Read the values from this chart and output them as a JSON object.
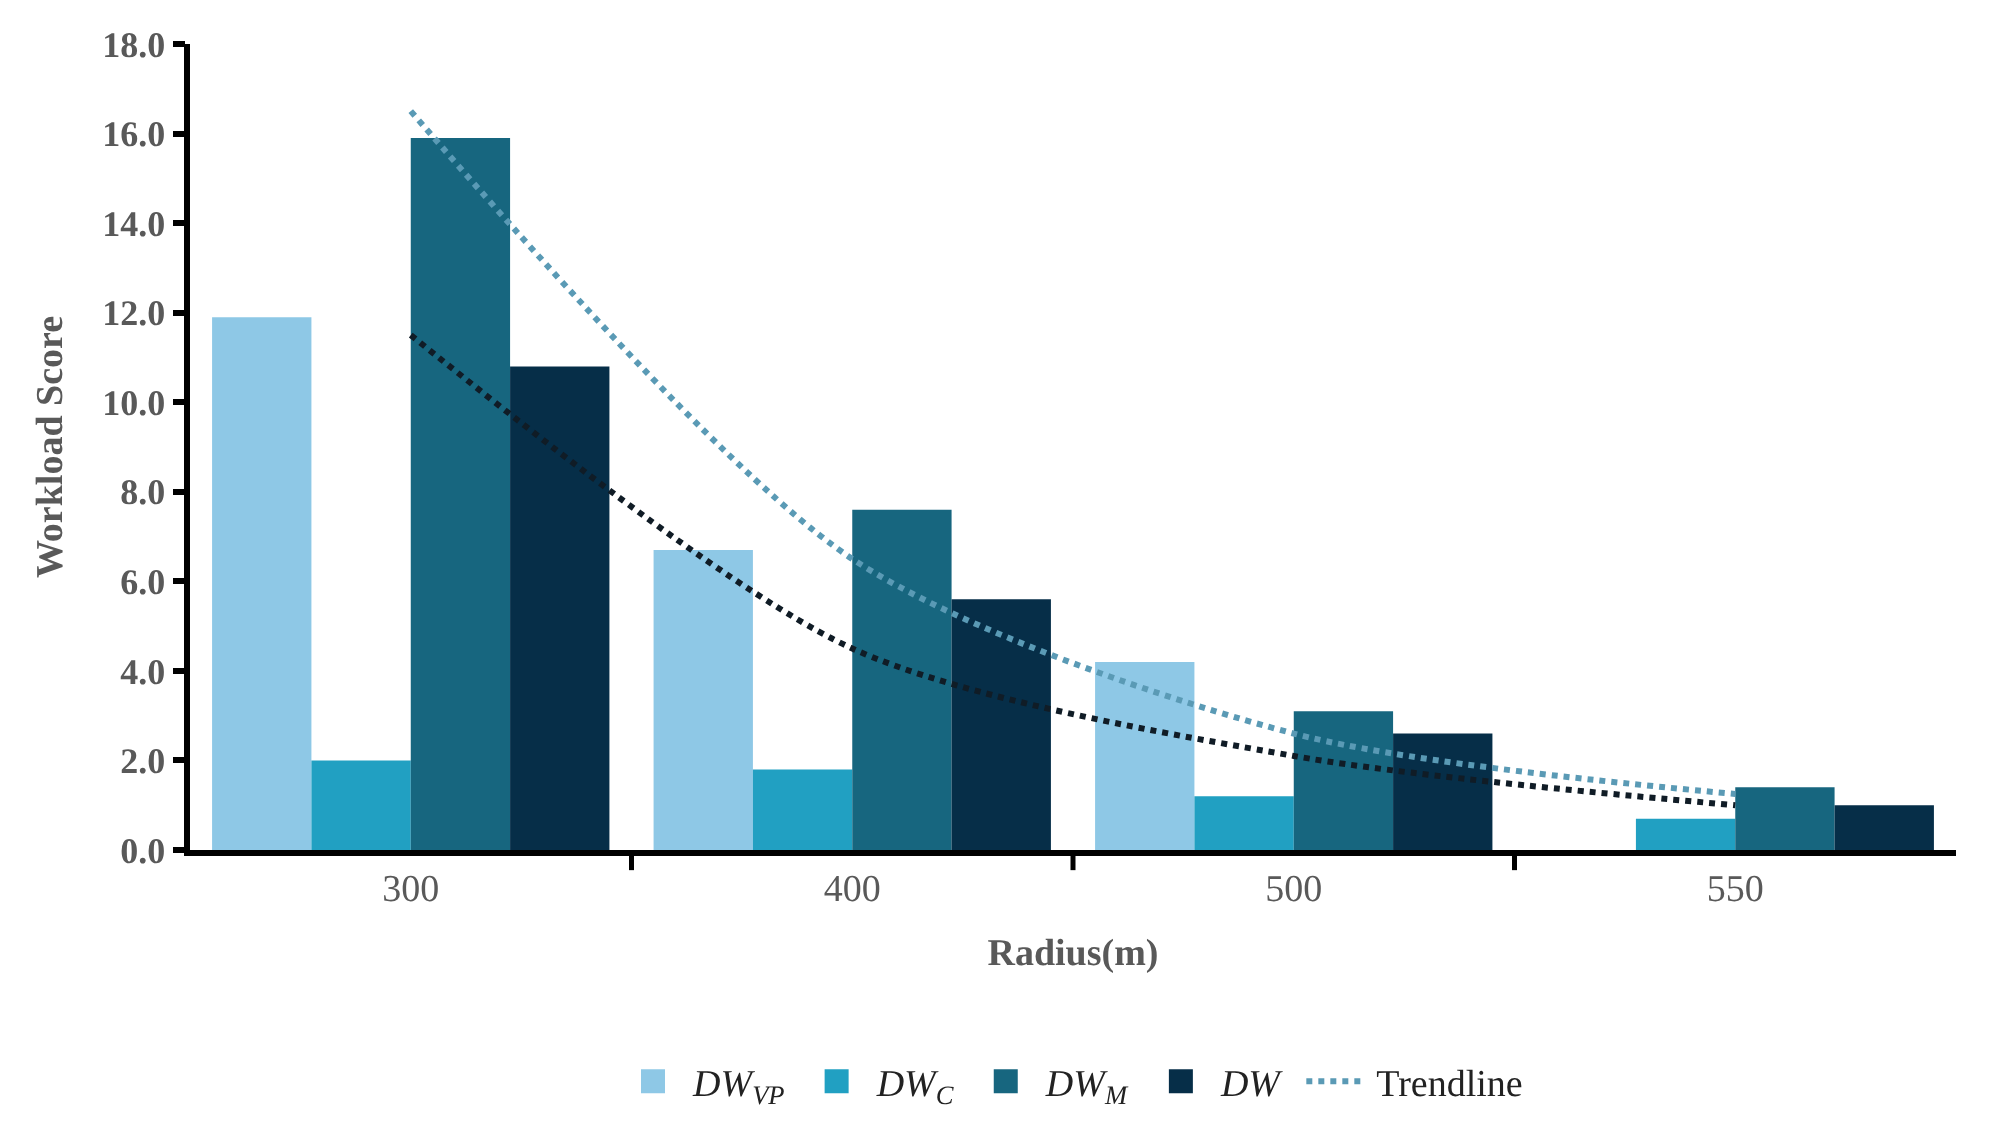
{
  "chart_data": {
    "type": "bar",
    "xlabel": "Radius(m)",
    "ylabel": "Workload Score",
    "categories": [
      "300",
      "400",
      "500",
      "550"
    ],
    "series": [
      {
        "name": "DW$_{VP}$",
        "color": "#8ec8e6",
        "values": [
          11.9,
          6.7,
          4.2,
          null
        ]
      },
      {
        "name": "DW$_{C}$",
        "color": "#21a0c2",
        "values": [
          2.0,
          1.8,
          1.2,
          0.7
        ]
      },
      {
        "name": "DW$_{M}$",
        "color": "#17667f",
        "values": [
          15.9,
          7.6,
          3.1,
          1.4
        ]
      },
      {
        "name": "DW",
        "color": "#062e48",
        "values": [
          10.8,
          5.6,
          2.6,
          1.0
        ]
      },
      {
        "name": "Trendline",
        "type": "line",
        "line_style": "dotted",
        "color": "#5a9ab5",
        "x": [
          "300",
          "400",
          "500",
          "550"
        ],
        "values": [
          16.5,
          6.5,
          2.6,
          1.25
        ]
      },
      {
        "type": "line",
        "line_style": "dotted",
        "color": "#101c26",
        "x": [
          "300",
          "400",
          "500",
          "550"
        ],
        "values": [
          11.5,
          4.5,
          2.1,
          1.0
        ]
      }
    ],
    "ylim": [
      0,
      18
    ],
    "yticks": [
      {
        "value": 0,
        "label": "0.0"
      },
      {
        "value": 2,
        "label": "2.0"
      },
      {
        "value": 4,
        "label": "4.0"
      },
      {
        "value": 6,
        "label": "6.0"
      },
      {
        "value": 8,
        "label": "8.0"
      },
      {
        "value": 10,
        "label": "10.0"
      },
      {
        "value": 12,
        "label": "12.0"
      },
      {
        "value": 14,
        "label": "14.0"
      },
      {
        "value": 16,
        "label": "16.0"
      },
      {
        "value": 18,
        "label": "18.0"
      }
    ],
    "legend": "bottom",
    "marker": "none"
  }
}
